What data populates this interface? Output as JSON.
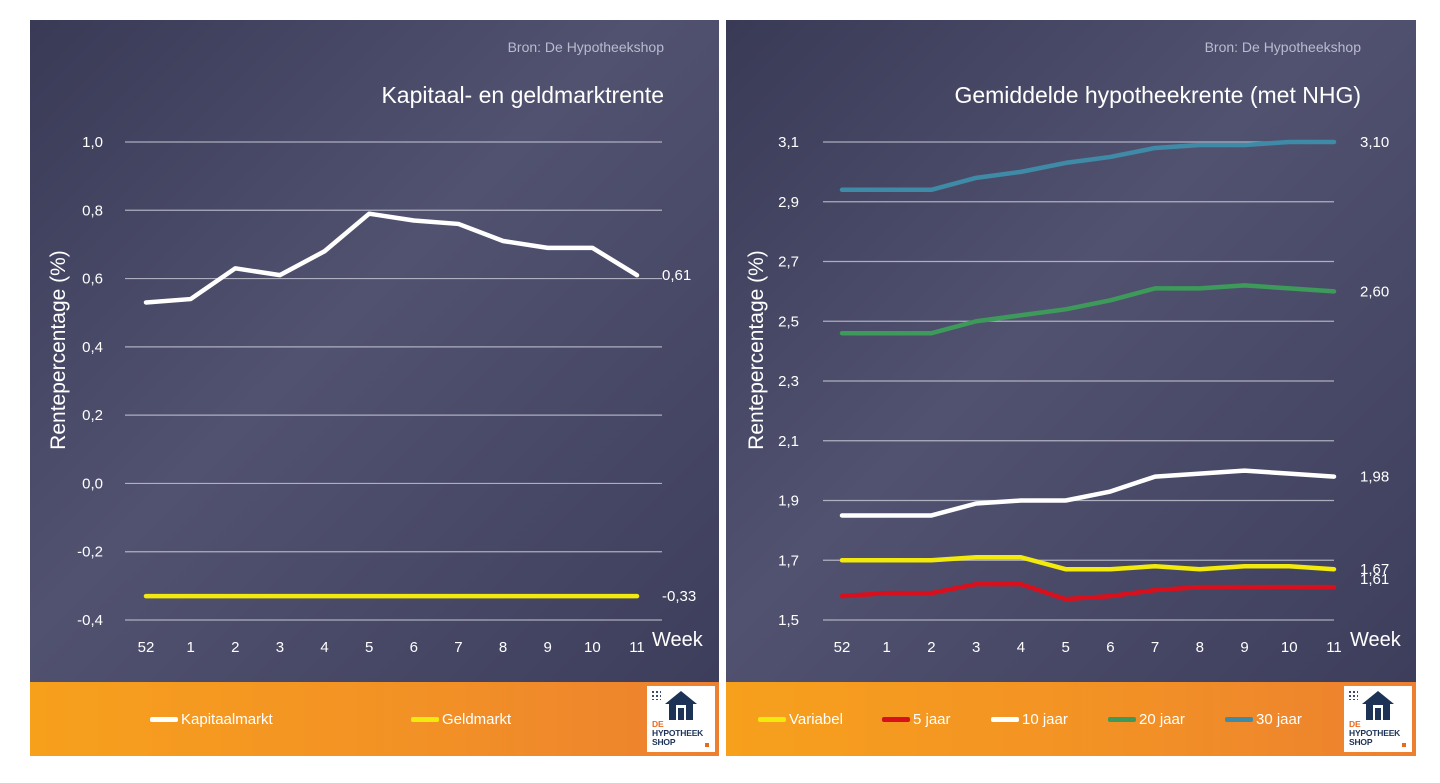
{
  "source": "Bron: De Hypotheekshop",
  "logo": {
    "line1": "DE",
    "line2": "HYPOTHEEK",
    "line3": "SHOP"
  },
  "colors": {
    "white": "#ffffff",
    "yellow": "#f2ea0c",
    "red": "#d8101e",
    "green": "#3d9a5a",
    "teal": "#3f8aa6",
    "grid": "#cfd0dc"
  },
  "chart_data": [
    {
      "type": "line",
      "title": "Kapitaal- en geldmarktrente",
      "xlabel": "Week",
      "ylabel": "Rentepercentage (%)",
      "categories": [
        "52",
        "1",
        "2",
        "3",
        "4",
        "5",
        "6",
        "7",
        "8",
        "9",
        "10",
        "11"
      ],
      "ylim": [
        -0.4,
        1.0
      ],
      "yticks": [
        "-0,4",
        "-0,2",
        "0,0",
        "0,2",
        "0,4",
        "0,6",
        "0,8",
        "1,0"
      ],
      "grid": true,
      "legend_position": "bottom",
      "series": [
        {
          "name": "Kapitaalmarkt",
          "color": "#ffffff",
          "end_label": "0,61",
          "values": [
            0.53,
            0.54,
            0.63,
            0.61,
            0.68,
            0.79,
            0.77,
            0.76,
            0.71,
            0.69,
            0.69,
            0.61
          ]
        },
        {
          "name": "Geldmarkt",
          "color": "#f2ea0c",
          "end_label": "-0,33",
          "values": [
            -0.33,
            -0.33,
            -0.33,
            -0.33,
            -0.33,
            -0.33,
            -0.33,
            -0.33,
            -0.33,
            -0.33,
            -0.33,
            -0.33
          ]
        }
      ]
    },
    {
      "type": "line",
      "title": "Gemiddelde hypotheekrente (met NHG)",
      "xlabel": "Week",
      "ylabel": "Rentepercentage (%)",
      "categories": [
        "52",
        "1",
        "2",
        "3",
        "4",
        "5",
        "6",
        "7",
        "8",
        "9",
        "10",
        "11"
      ],
      "ylim": [
        1.5,
        3.1
      ],
      "yticks": [
        "1,5",
        "1,7",
        "1,9",
        "2,1",
        "2,3",
        "2,5",
        "2,7",
        "2,9",
        "3,1"
      ],
      "grid": true,
      "legend_position": "bottom",
      "series": [
        {
          "name": "Variabel",
          "color": "#f2ea0c",
          "end_label": "1,67",
          "values": [
            1.7,
            1.7,
            1.7,
            1.71,
            1.71,
            1.67,
            1.67,
            1.68,
            1.67,
            1.68,
            1.68,
            1.67
          ]
        },
        {
          "name": "5 jaar",
          "color": "#d8101e",
          "end_label": "1,61",
          "values": [
            1.58,
            1.59,
            1.59,
            1.62,
            1.62,
            1.57,
            1.58,
            1.6,
            1.61,
            1.61,
            1.61,
            1.61
          ]
        },
        {
          "name": "10 jaar",
          "color": "#ffffff",
          "end_label": "1,98",
          "values": [
            1.85,
            1.85,
            1.85,
            1.89,
            1.9,
            1.9,
            1.93,
            1.98,
            1.99,
            2.0,
            1.99,
            1.98
          ]
        },
        {
          "name": "20 jaar",
          "color": "#3d9a5a",
          "end_label": "2,60",
          "values": [
            2.46,
            2.46,
            2.46,
            2.5,
            2.52,
            2.54,
            2.57,
            2.61,
            2.61,
            2.62,
            2.61,
            2.6
          ]
        },
        {
          "name": "30 jaar",
          "color": "#3f8aa6",
          "end_label": "3,10",
          "values": [
            2.94,
            2.94,
            2.94,
            2.98,
            3.0,
            3.03,
            3.05,
            3.08,
            3.09,
            3.09,
            3.1,
            3.1
          ]
        }
      ]
    }
  ]
}
